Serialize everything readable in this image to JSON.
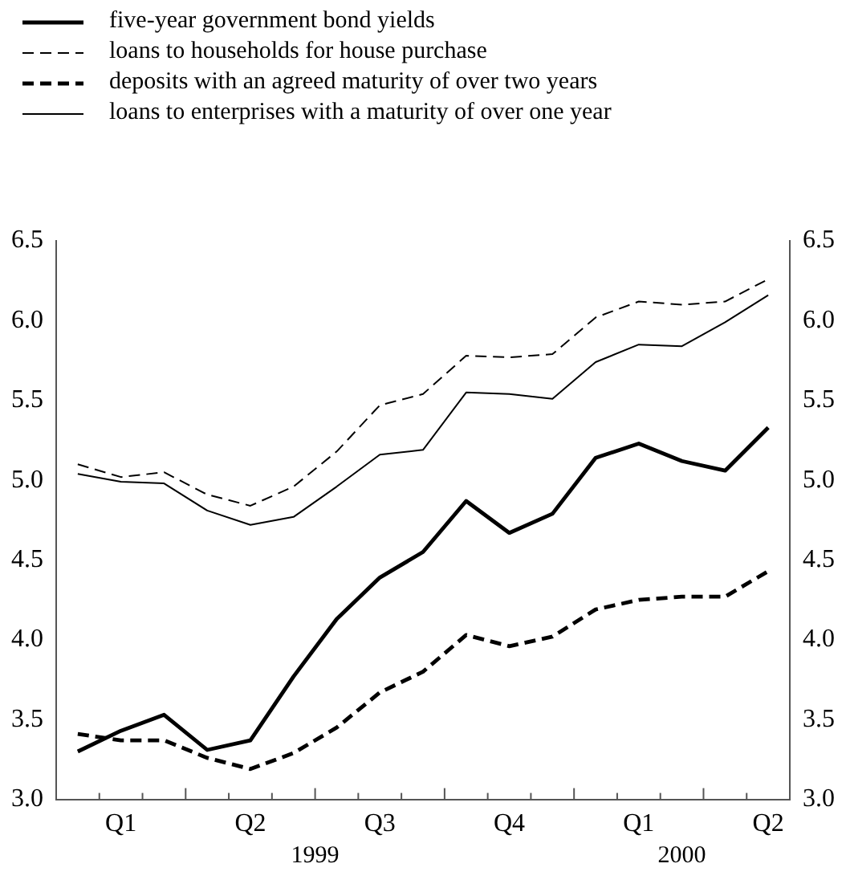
{
  "chart_data": {
    "type": "line",
    "categories": [
      null,
      "Q1",
      null,
      null,
      "Q2",
      null,
      null,
      "Q3",
      null,
      null,
      "Q4",
      null,
      null,
      "Q1",
      null,
      null,
      "Q2"
    ],
    "series": [
      {
        "name": "five-year government bond yields",
        "color": "#000000",
        "line_style": "solid",
        "values": [
          3.3,
          3.43,
          3.53,
          3.31,
          3.37,
          3.77,
          4.13,
          4.39,
          4.55,
          4.87,
          4.67,
          4.79,
          5.14,
          5.23,
          5.12,
          5.06,
          5.33
        ]
      },
      {
        "name": "loans to households for house purchase",
        "color": "#000000",
        "line_style": "dashed",
        "values": [
          5.1,
          5.02,
          5.05,
          4.91,
          4.84,
          4.96,
          5.18,
          5.47,
          5.54,
          5.78,
          5.77,
          5.79,
          6.02,
          6.12,
          6.1,
          6.12,
          6.26
        ]
      },
      {
        "name": "deposits with an agreed maturity of over two years",
        "color": "#000000",
        "line_style": "dashed",
        "values": [
          3.41,
          3.37,
          3.37,
          3.26,
          3.19,
          3.29,
          3.45,
          3.67,
          3.8,
          4.03,
          3.96,
          4.02,
          4.19,
          4.25,
          4.27,
          4.27,
          4.43
        ]
      },
      {
        "name": "loans to enterprises with a maturity of over one year",
        "color": "#000000",
        "line_style": "solid",
        "values": [
          5.04,
          4.99,
          4.98,
          4.81,
          4.72,
          4.77,
          4.96,
          5.16,
          5.19,
          5.55,
          5.54,
          5.51,
          5.74,
          5.85,
          5.84,
          5.99,
          6.16
        ]
      }
    ],
    "ylim": [
      3.0,
      6.5
    ],
    "yticks": [
      {
        "value": 3.0,
        "label": "3.0"
      },
      {
        "value": 3.5,
        "label": "3.5"
      },
      {
        "value": 4.0,
        "label": "4.0"
      },
      {
        "value": 4.5,
        "label": "4.5"
      },
      {
        "value": 5.0,
        "label": "5.0"
      },
      {
        "value": 5.5,
        "label": "5.5"
      },
      {
        "value": 6.0,
        "label": "6.0"
      },
      {
        "value": 6.5,
        "label": "6.5"
      }
    ],
    "y2lim": [
      3.0,
      6.5
    ],
    "y2ticks": [
      {
        "value": 3.0,
        "label": "3.0"
      },
      {
        "value": 3.5,
        "label": "3.5"
      },
      {
        "value": 4.0,
        "label": "4.0"
      },
      {
        "value": 4.5,
        "label": "4.5"
      },
      {
        "value": 5.0,
        "label": "5.0"
      },
      {
        "value": 5.5,
        "label": "5.5"
      },
      {
        "value": 6.0,
        "label": "6.0"
      },
      {
        "value": 6.5,
        "label": "6.5"
      }
    ],
    "annotations": [
      "1999",
      "2000"
    ],
    "grid": false,
    "legend": "top left",
    "marker": "none"
  }
}
